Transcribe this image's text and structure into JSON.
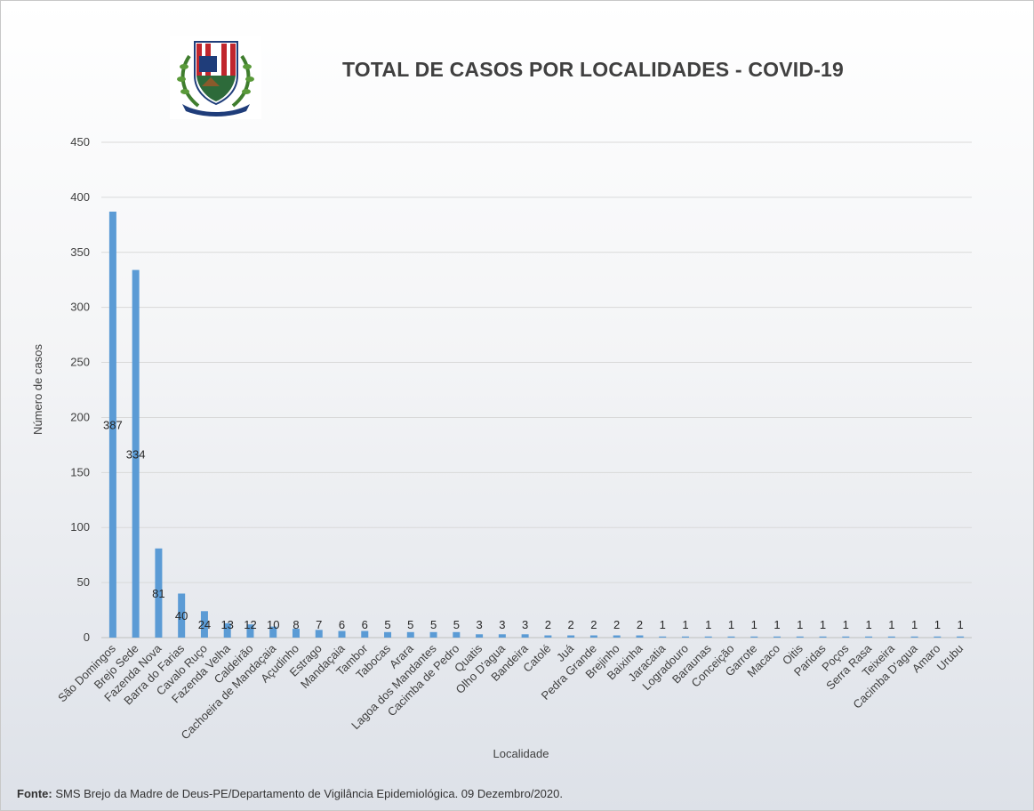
{
  "chart_data": {
    "type": "bar",
    "title": "TOTAL DE CASOS POR LOCALIDADES - COVID-19",
    "xlabel": "Localidade",
    "ylabel": "Número de casos",
    "ylim": [
      0,
      450
    ],
    "yticks": [
      0,
      50,
      100,
      150,
      200,
      250,
      300,
      350,
      400,
      450
    ],
    "grid": true,
    "bar_color": "#5b9bd5",
    "categories": [
      "São Domingos",
      "Brejo Sede",
      "Fazenda Nova",
      "Barra do Farias",
      "Cavalo Ruço",
      "Fazenda Velha",
      "Caldeirão",
      "Cachoeira de Mandaçaia",
      "Açudinho",
      "Estrago",
      "Mandaçaia",
      "Tambor",
      "Tabocas",
      "Arara",
      "Lagoa dos Mandantes",
      "Cacimba de Pedro",
      "Quatis",
      "Olho D'agua",
      "Bandeira",
      "Catolé",
      "Juá",
      "Pedra Grande",
      "Brejinho",
      "Baixinha",
      "Jaracatia",
      "Logradouro",
      "Baraunas",
      "Conceição",
      "Garrote",
      "Macaco",
      "Oitis",
      "Paridas",
      "Poços",
      "Serra Rasa",
      "Teixeira",
      "Cacimba D'agua",
      "Amaro",
      "Urubu"
    ],
    "values": [
      387,
      334,
      81,
      40,
      24,
      13,
      12,
      10,
      8,
      7,
      6,
      6,
      5,
      5,
      5,
      5,
      3,
      3,
      3,
      2,
      2,
      2,
      2,
      2,
      1,
      1,
      1,
      1,
      1,
      1,
      1,
      1,
      1,
      1,
      1,
      1,
      1,
      1
    ]
  },
  "footer": {
    "label": "Fonte:",
    "text": "SMS Brejo da Madre de Deus-PE/Departamento de Vigilância Epidemiológica. 09 Dezembro/2020."
  }
}
